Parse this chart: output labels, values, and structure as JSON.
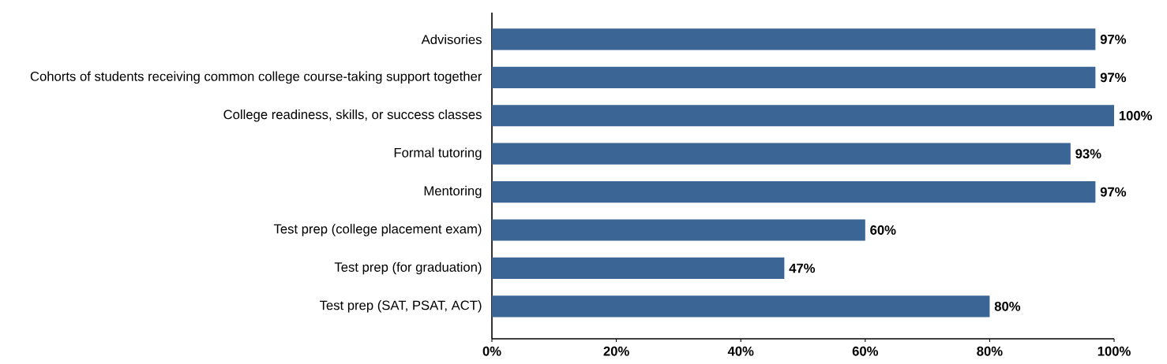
{
  "chart_data": {
    "type": "bar",
    "orientation": "horizontal",
    "categories": [
      "Advisories",
      "Cohorts of students receiving common college course-taking support together",
      "College readiness, skills, or success classes",
      "Formal tutoring",
      "Mentoring",
      "Test prep (college placement exam)",
      "Test prep (for graduation)",
      "Test prep (SAT, PSAT, ACT)"
    ],
    "values": [
      97,
      97,
      100,
      93,
      97,
      60,
      47,
      80
    ],
    "value_labels": [
      "97%",
      "97%",
      "100%",
      "93%",
      "97%",
      "60%",
      "47%",
      "80%"
    ],
    "color": "#3a6595",
    "xlim": [
      0,
      100
    ],
    "xticks": [
      {
        "value": 0,
        "label": "0%"
      },
      {
        "value": 20,
        "label": "20%"
      },
      {
        "value": 40,
        "label": "40%"
      },
      {
        "value": 60,
        "label": "60%"
      },
      {
        "value": 80,
        "label": "80%"
      },
      {
        "value": 100,
        "label": "100%"
      }
    ],
    "data_labels": false
  }
}
